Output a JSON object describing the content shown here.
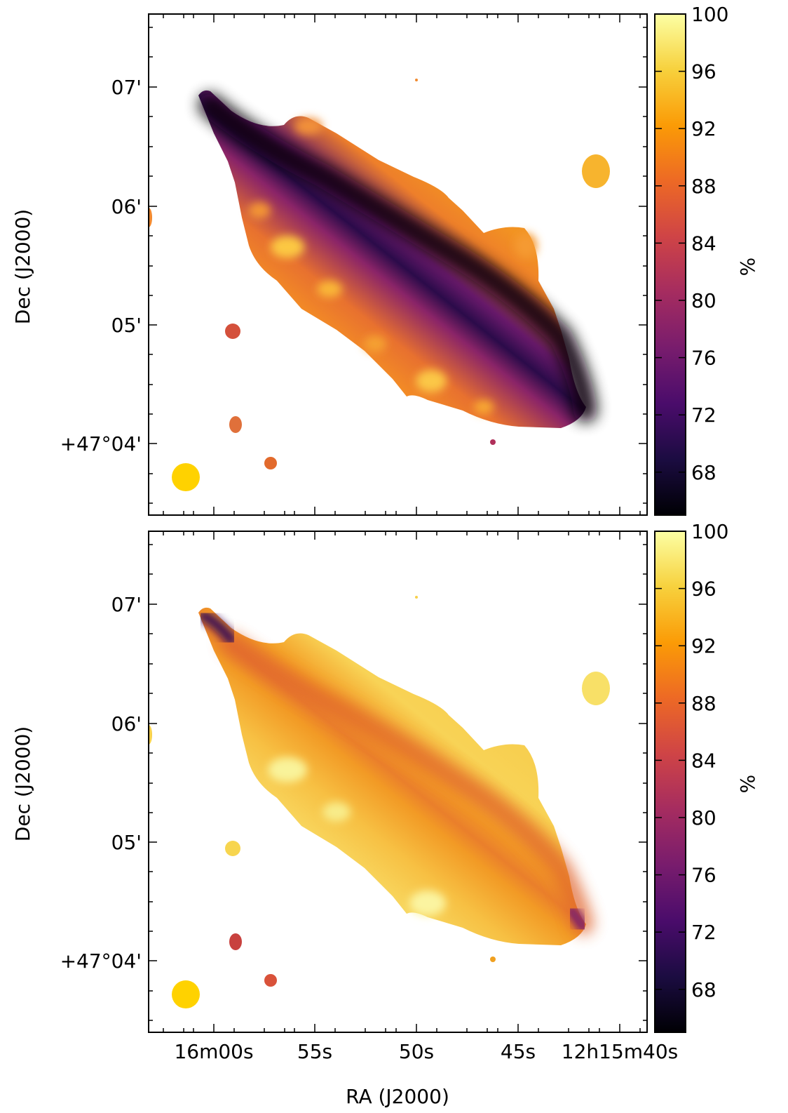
{
  "figure_title": "",
  "panels": [
    {
      "id": "top",
      "colorbar": {
        "label": "%",
        "min": 65,
        "max": 100,
        "ticks": [
          100,
          96,
          92,
          88,
          84,
          80,
          76,
          72,
          68
        ]
      },
      "ylabel": "Dec (J2000)",
      "yticks": [
        "07'",
        "06'",
        "05'",
        "+47°04'"
      ],
      "xticks_visible": false
    },
    {
      "id": "bottom",
      "colorbar": {
        "label": "%",
        "min": 65,
        "max": 100,
        "ticks": [
          100,
          96,
          92,
          88,
          84,
          80,
          76,
          72,
          68
        ]
      },
      "ylabel": "Dec (J2000)",
      "yticks": [
        "07'",
        "06'",
        "05'",
        "+47°04'"
      ],
      "xticks_visible": true
    }
  ],
  "xlabel": "RA (J2000)",
  "xticks": [
    "16m00s",
    "55s",
    "50s",
    "45s",
    "12h15m40s"
  ],
  "colormap": "inferno",
  "colormap_stops": [
    "#000004",
    "#1b0c41",
    "#4a0c6b",
    "#781c6d",
    "#a52c60",
    "#cf4446",
    "#ed6925",
    "#fb9b06",
    "#f7d13d",
    "#fcffa4"
  ],
  "beam_color": "#ffd200",
  "chart_data": [
    {
      "type": "heatmap",
      "title": "",
      "xlabel": "",
      "ylabel": "Dec (J2000)",
      "colorbar_label": "%",
      "colorbar_range": [
        65,
        100
      ],
      "description_values": {
        "galaxy_disk_edges": 93,
        "dust_lane_center": 70,
        "mid_disk": 80,
        "northwest_tip": 67,
        "southeast_tip": 66
      }
    },
    {
      "type": "heatmap",
      "title": "",
      "xlabel": "RA (J2000)",
      "ylabel": "Dec (J2000)",
      "colorbar_label": "%",
      "colorbar_range": [
        65,
        100
      ],
      "description_values": {
        "galaxy_disk_edges": 98,
        "dust_lane_center": 90,
        "mid_disk": 94,
        "northwest_tip": 70,
        "southeast_tip": 76
      }
    }
  ]
}
